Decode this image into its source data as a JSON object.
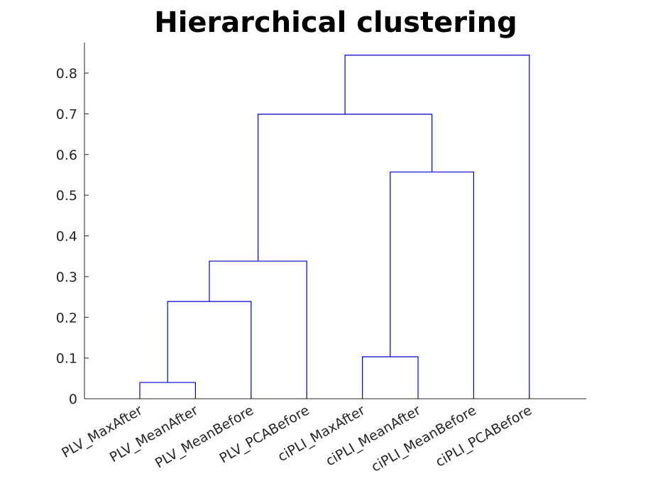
{
  "chart_data": {
    "type": "dendrogram",
    "title": "Hierarchical clustering",
    "xlabel": "",
    "ylabel": "",
    "ylim": [
      0,
      0.875
    ],
    "yticks": [
      0,
      0.1,
      0.2,
      0.3,
      0.4,
      0.5,
      0.6,
      0.7,
      0.8
    ],
    "ytick_labels": [
      "0",
      "0.1",
      "0.2",
      "0.3",
      "0.4",
      "0.5",
      "0.6",
      "0.7",
      "0.8"
    ],
    "leaves": [
      "PLV_MaxAfter",
      "PLV_MeanAfter",
      "PLV_MeanBefore",
      "PLV_PCABefore",
      "ciPLI_MaxAfter",
      "ciPLI_MeanAfter",
      "ciPLI_MeanBefore",
      "ciPLI_PCABefore"
    ],
    "merges": [
      {
        "left": "PLV_MaxAfter",
        "right": "PLV_MeanAfter",
        "height": 0.04
      },
      {
        "left": "ciPLI_MaxAfter",
        "right": "ciPLI_MeanAfter",
        "height": 0.103
      },
      {
        "left": "(PLV_MaxAfter, PLV_MeanAfter)",
        "right": "PLV_MeanBefore",
        "height": 0.239
      },
      {
        "left": "(PLV_MaxAfter, PLV_MeanAfter, PLV_MeanBefore)",
        "right": "PLV_PCABefore",
        "height": 0.338
      },
      {
        "left": "(ciPLI_MaxAfter, ciPLI_MeanAfter)",
        "right": "ciPLI_MeanBefore",
        "height": 0.557
      },
      {
        "left": "(PLV cluster)",
        "right": "(ciPLI_MaxAfter, ciPLI_MeanAfter, ciPLI_MeanBefore)",
        "height": 0.699
      },
      {
        "left": "(all but ciPLI_PCABefore)",
        "right": "ciPLI_PCABefore",
        "height": 0.844
      }
    ],
    "line_color": "#0000cc",
    "grid": false
  }
}
